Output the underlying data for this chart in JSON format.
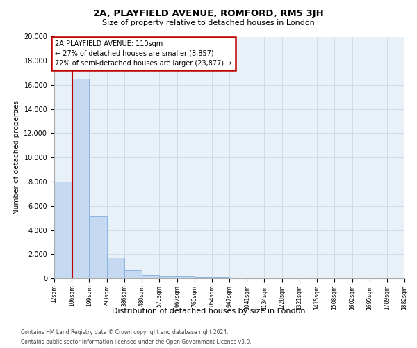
{
  "title1": "2A, PLAYFIELD AVENUE, ROMFORD, RM5 3JH",
  "title2": "Size of property relative to detached houses in London",
  "xlabel": "Distribution of detached houses by size in London",
  "ylabel": "Number of detached properties",
  "bin_edges": [
    12,
    106,
    199,
    293,
    386,
    480,
    573,
    667,
    760,
    854,
    947,
    1041,
    1134,
    1228,
    1321,
    1415,
    1508,
    1602,
    1695,
    1789,
    1882
  ],
  "bar_heights": [
    8000,
    16500,
    5100,
    1750,
    700,
    300,
    200,
    160,
    130,
    100,
    85,
    70,
    62,
    57,
    52,
    47,
    42,
    38,
    34,
    30
  ],
  "bar_color": "#c5d9f1",
  "bar_edge_color": "#8eb4e3",
  "property_size": 110,
  "property_line_color": "#c00000",
  "annotation_line1": "2A PLAYFIELD AVENUE: 110sqm",
  "annotation_line2": "← 27% of detached houses are smaller (8,857)",
  "annotation_line3": "72% of semi-detached houses are larger (23,877) →",
  "annotation_box_color": "#c00000",
  "ylim": [
    0,
    20000
  ],
  "yticks": [
    0,
    2000,
    4000,
    6000,
    8000,
    10000,
    12000,
    14000,
    16000,
    18000,
    20000
  ],
  "grid_color": "#c8d8e8",
  "background_color": "#e8f0f8",
  "footer1": "Contains HM Land Registry data © Crown copyright and database right 2024.",
  "footer2": "Contains public sector information licensed under the Open Government Licence v3.0."
}
